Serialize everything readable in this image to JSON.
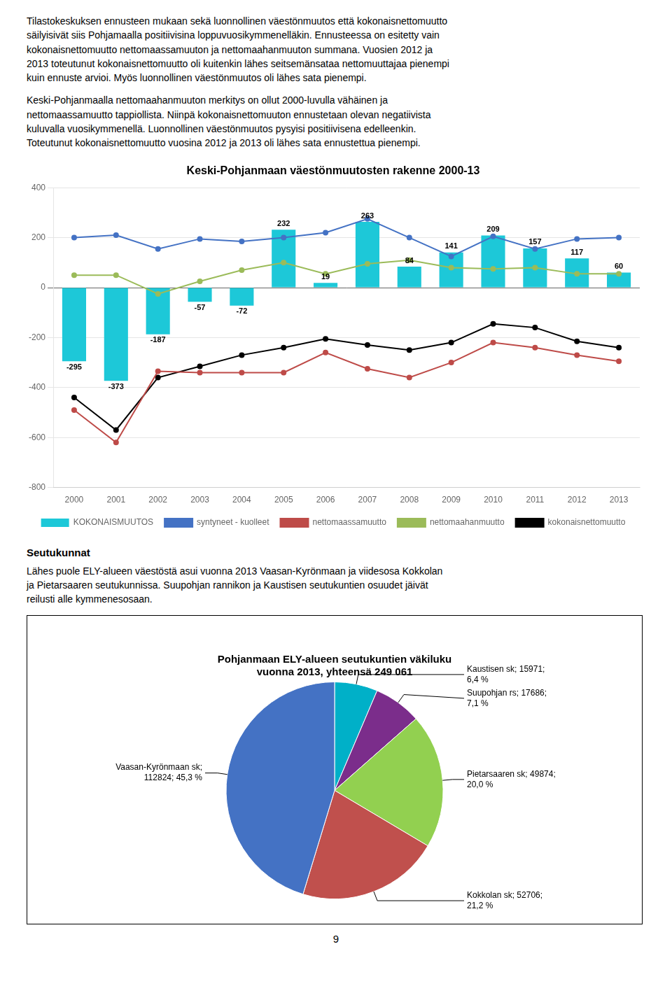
{
  "text1": "Tilastokeskuksen ennusteen mukaan sekä luonnollinen väestönmuutos että kokonaisnettomuutto\nsäilyisivät siis Pohjamaalla positiivisina loppuvuosikymmenelläkin. Ennusteessa on esitetty vain\nkokonaisnettomuutto nettomaassamuuton ja nettomaahanmuuton summana. Vuosien 2012 ja\n2013 toteutunut kokonaisnettomuutto oli kuitenkin lähes seitsemänsataa nettomuuttajaa pienempi\nkuin ennuste arvioi. Myös luonnollinen väestönmuutos oli lähes sata pienempi.",
  "text2": "Keski-Pohjanmaalla nettomaahanmuuton merkitys on ollut 2000-luvulla vähäinen ja\nnettomaassamuutto tappiollista. Niinpä kokonaisnettomuuton ennustetaan olevan negatiivista\nkuluvalla vuosikymmenellä. Luonnollinen väestönmuutos pysyisi positiivisena edelleenkin.\nToteutunut kokonaisnettomuutto vuosina 2012 ja 2013 oli lähes sata ennustettua pienempi.",
  "section_title": "Seutukunnat",
  "text3": "Lähes puole ELY-alueen väestöstä asui vuonna 2013 Vaasan-Kyrönmaan ja viidesosa Kokkolan\nja Pietarsaaren seutukunnissa. Suupohjan rannikon ja Kaustisen seutukuntien osuudet jäivät\nreilusti alle kymmenesosaan.",
  "page_number": "9",
  "chart_data": [
    {
      "type": "bar",
      "title": "Keski-Pohjanmaan väestönmuutosten rakenne 2000-13",
      "categories": [
        "2000",
        "2001",
        "2002",
        "2003",
        "2004",
        "2005",
        "2006",
        "2007",
        "2008",
        "2009",
        "2010",
        "2011",
        "2012",
        "2013"
      ],
      "series": [
        {
          "name": "KOKONAISMUUTOS",
          "type": "bar",
          "color": "#1DC8D8",
          "data_labels": true,
          "values": [
            -295,
            -373,
            -187,
            -57,
            -72,
            232,
            19,
            263,
            84,
            141,
            209,
            157,
            117,
            60
          ]
        },
        {
          "name": "syntyneet - kuolleet",
          "type": "line",
          "color": "#4472C4",
          "marker": "circle",
          "values": [
            200,
            210,
            155,
            195,
            185,
            200,
            220,
            275,
            200,
            125,
            205,
            155,
            195,
            200
          ]
        },
        {
          "name": "nettomaassamuutto",
          "type": "line",
          "color": "#BE4B48",
          "marker": "circle",
          "values": [
            -490,
            -620,
            -335,
            -340,
            -340,
            -340,
            -260,
            -325,
            -360,
            -300,
            -220,
            -240,
            -270,
            -295
          ]
        },
        {
          "name": "nettomaahanmuutto",
          "type": "line",
          "color": "#9BBB59",
          "marker": "circle",
          "values": [
            50,
            50,
            -25,
            25,
            70,
            100,
            55,
            95,
            110,
            80,
            75,
            80,
            55,
            55
          ]
        },
        {
          "name": "kokonaisnettomuutto",
          "type": "line",
          "color": "#000000",
          "marker": "circle",
          "values": [
            -440,
            -570,
            -360,
            -315,
            -270,
            -240,
            -205,
            -230,
            -250,
            -220,
            -145,
            -160,
            -215,
            -240
          ]
        }
      ],
      "ylim": [
        -800,
        400
      ],
      "yticks": [
        -800,
        -600,
        -400,
        -200,
        0,
        200,
        400
      ],
      "grid": true,
      "legend": "bottom"
    },
    {
      "type": "pie",
      "title": "Pohjanmaan ELY-alueen seutukuntien väkiluku\nvuonna 2013, yhteensä 249 061",
      "values": [
        15971,
        17686,
        49874,
        52706,
        112824
      ],
      "value_labels": [
        "Kaustisen sk; 15971;\n6,4 %",
        "Suupohjan rs; 17686;\n7,1 %",
        "Pietarsaaren sk; 49874;\n20,0 %",
        "Kokkolan sk; 52706;\n21,2 %",
        "Vaasan-Kyrönmaan sk;\n112824; 45,3 %"
      ],
      "colors": [
        "#00B0C8",
        "#7B2D8B",
        "#92D050",
        "#C0504D",
        "#4472C4"
      ],
      "data_labels": true
    }
  ]
}
